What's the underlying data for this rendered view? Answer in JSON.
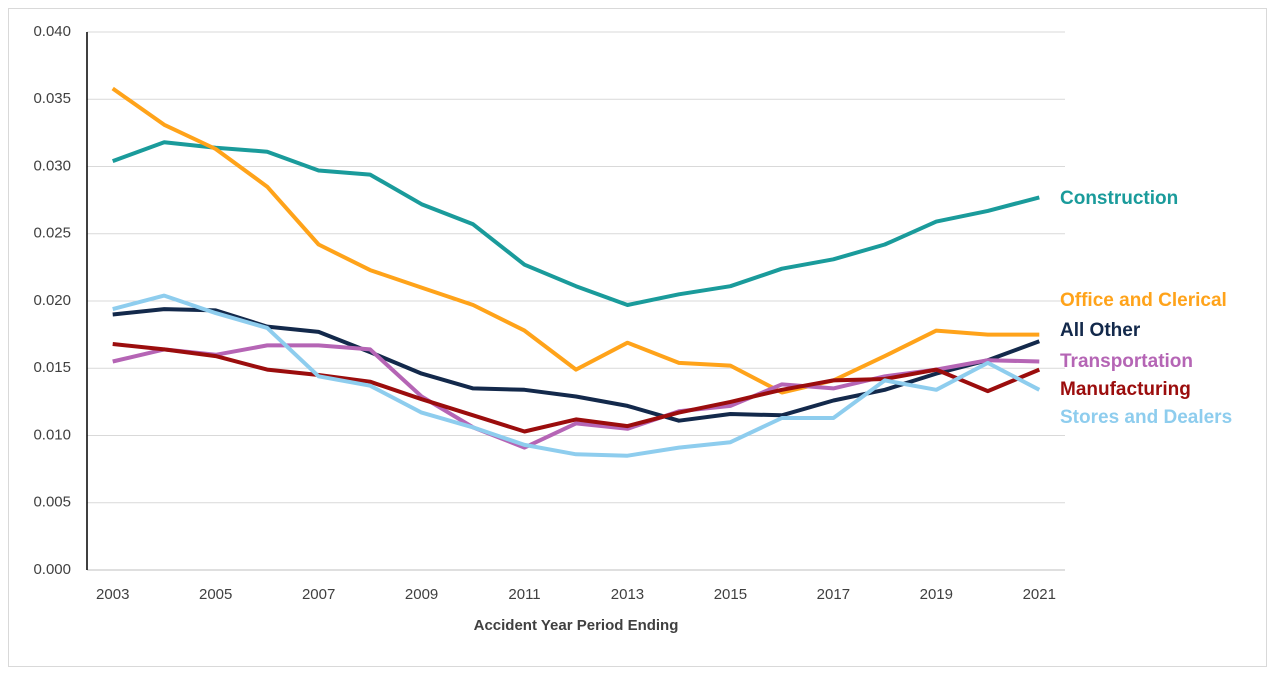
{
  "chart_data": {
    "type": "line",
    "x_label": "Accident Year Period Ending",
    "x": [
      2003,
      2004,
      2005,
      2006,
      2007,
      2008,
      2009,
      2010,
      2011,
      2012,
      2013,
      2014,
      2015,
      2016,
      2017,
      2018,
      2019,
      2020,
      2021
    ],
    "xlim": [
      2002.5,
      2021.5
    ],
    "xticks": [
      2003,
      2005,
      2007,
      2009,
      2011,
      2013,
      2015,
      2017,
      2019,
      2021
    ],
    "ylim": [
      0,
      0.04
    ],
    "yticks": [
      {
        "value": 0,
        "label": "0.000"
      },
      {
        "value": 0.005,
        "label": "0.005"
      },
      {
        "value": 0.01,
        "label": "0.010"
      },
      {
        "value": 0.015,
        "label": "0.015"
      },
      {
        "value": 0.02,
        "label": "0.020"
      },
      {
        "value": 0.025,
        "label": "0.025"
      },
      {
        "value": 0.03,
        "label": "0.030"
      },
      {
        "value": 0.035,
        "label": "0.035"
      },
      {
        "value": 0.04,
        "label": "0.040"
      }
    ],
    "grid": true,
    "series": [
      {
        "name": "Construction",
        "color": "#1a9b9b",
        "values": [
          0.0304,
          0.0318,
          0.0314,
          0.0311,
          0.0297,
          0.0294,
          0.0272,
          0.0257,
          0.0227,
          0.0211,
          0.0197,
          0.0205,
          0.0211,
          0.0224,
          0.0231,
          0.0242,
          0.0259,
          0.0267,
          0.0277
        ]
      },
      {
        "name": "Office and Clerical",
        "color": "#ffa31a",
        "values": [
          0.0358,
          0.0331,
          0.0313,
          0.0285,
          0.0242,
          0.0223,
          0.021,
          0.0197,
          0.0178,
          0.0149,
          0.0169,
          0.0154,
          0.0152,
          0.0132,
          0.0141,
          0.0159,
          0.0178,
          0.0175,
          0.0175
        ]
      },
      {
        "name": "All Other",
        "color": "#13294b",
        "values": [
          0.019,
          0.0194,
          0.0193,
          0.0181,
          0.0177,
          0.0162,
          0.0146,
          0.0135,
          0.0134,
          0.0129,
          0.0122,
          0.0111,
          0.0116,
          0.0115,
          0.0126,
          0.0134,
          0.0146,
          0.0156,
          0.017
        ]
      },
      {
        "name": "Transportation",
        "color": "#b565b5",
        "values": [
          0.0155,
          0.0164,
          0.016,
          0.0167,
          0.0167,
          0.0164,
          0.0129,
          0.0106,
          0.0091,
          0.0109,
          0.0105,
          0.0118,
          0.0122,
          0.0138,
          0.0135,
          0.0144,
          0.0149,
          0.0156,
          0.0155
        ]
      },
      {
        "name": "Manufacturing",
        "color": "#9b0d0d",
        "values": [
          0.0168,
          0.0164,
          0.0159,
          0.0149,
          0.0145,
          0.014,
          0.0127,
          0.0115,
          0.0103,
          0.0112,
          0.0107,
          0.0117,
          0.0125,
          0.0134,
          0.0141,
          0.0142,
          0.0149,
          0.0133,
          0.0149
        ]
      },
      {
        "name": "Stores and Dealers",
        "color": "#8ecdee",
        "values": [
          0.0194,
          0.0204,
          0.0191,
          0.018,
          0.0144,
          0.0137,
          0.0117,
          0.0106,
          0.0093,
          0.0086,
          0.0085,
          0.0091,
          0.0095,
          0.0113,
          0.0113,
          0.0141,
          0.0134,
          0.0154,
          0.0134
        ]
      }
    ]
  }
}
